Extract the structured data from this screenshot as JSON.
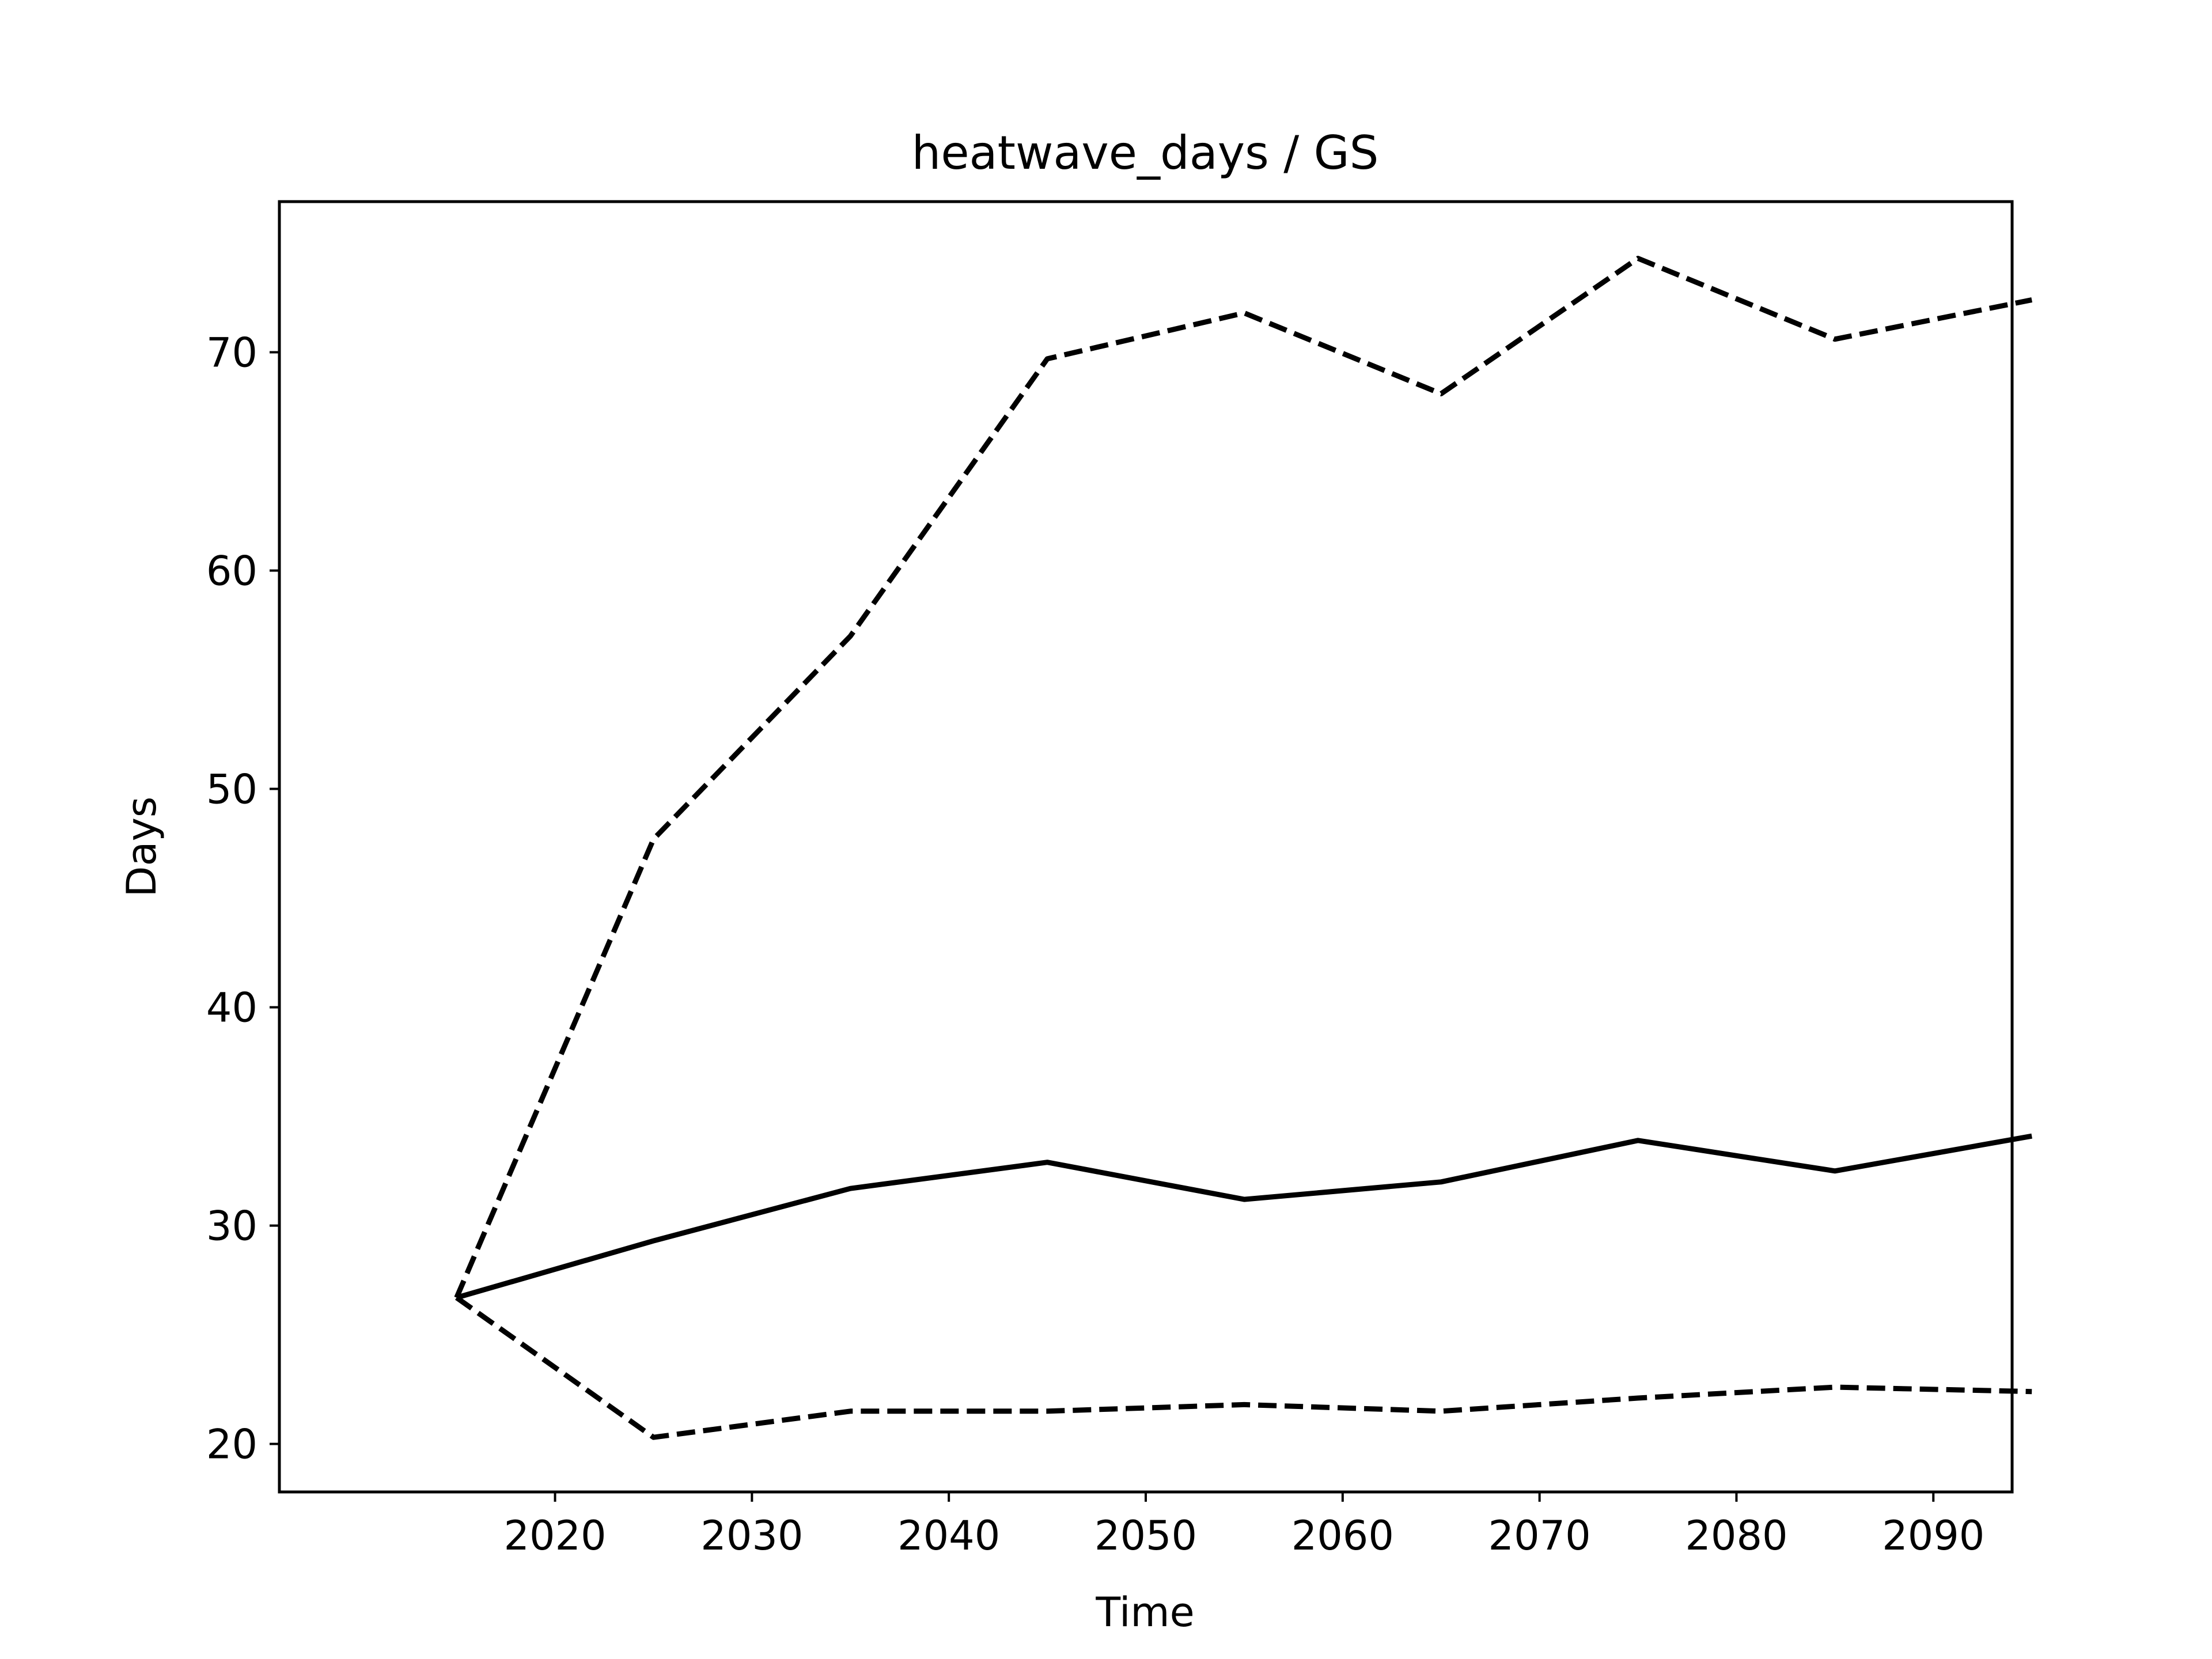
{
  "chart_data": {
    "type": "line",
    "title": "heatwave_days / GS",
    "xlabel": "Time",
    "ylabel": "Days",
    "x": [
      2015,
      2025,
      2035,
      2045,
      2055,
      2065,
      2075,
      2085,
      2095
    ],
    "xlim": [
      2006,
      2094
    ],
    "ylim": [
      17.8,
      76.9
    ],
    "x_ticks": [
      "2020",
      "2030",
      "2040",
      "2050",
      "2060",
      "2070",
      "2080",
      "2090"
    ],
    "y_ticks": [
      "20",
      "30",
      "40",
      "50",
      "60",
      "70"
    ],
    "grid": false,
    "legend": "none",
    "series": [
      {
        "style": "solid",
        "values": [
          26.7,
          29.3,
          31.7,
          32.9,
          31.2,
          32.0,
          33.9,
          32.5,
          34.1
        ]
      },
      {
        "style": "dashed",
        "values": [
          26.7,
          47.7,
          57.0,
          69.7,
          71.8,
          68.1,
          74.3,
          70.6,
          72.4
        ]
      },
      {
        "style": "dashed",
        "values": [
          26.7,
          20.3,
          21.5,
          21.5,
          21.8,
          21.5,
          22.1,
          22.6,
          22.4
        ]
      }
    ],
    "colors": {
      "line": "#000000",
      "axes": "#000000",
      "background": "#ffffff"
    }
  }
}
